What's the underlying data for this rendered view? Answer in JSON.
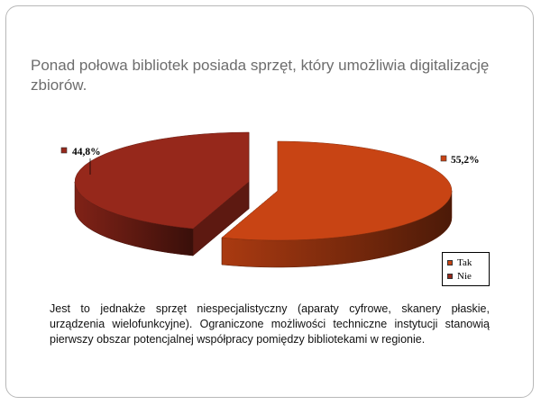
{
  "slide": {
    "title": "Ponad połowa bibliotek posiada sprzęt, który umożliwia digitalizację zbiorów.",
    "body": "Jest to jednakże sprzęt niespecjalistyczny (aparaty cyfrowe, skanery płaskie, urządzenia wielofunkcyjne). Ograniczone możliwości techniczne instytucji stanowią pierwszy obszar potencjalnej współpracy pomiędzy bibliotekami w regionie."
  },
  "chart_data": {
    "type": "pie",
    "style": "3d-exploded",
    "categories": [
      "Tak",
      "Nie"
    ],
    "values": [
      55.2,
      44.8
    ],
    "labels": [
      "55,2%",
      "44,8%"
    ],
    "colors": [
      "#c84414",
      "#96281b"
    ],
    "legend": "right",
    "title": ""
  }
}
